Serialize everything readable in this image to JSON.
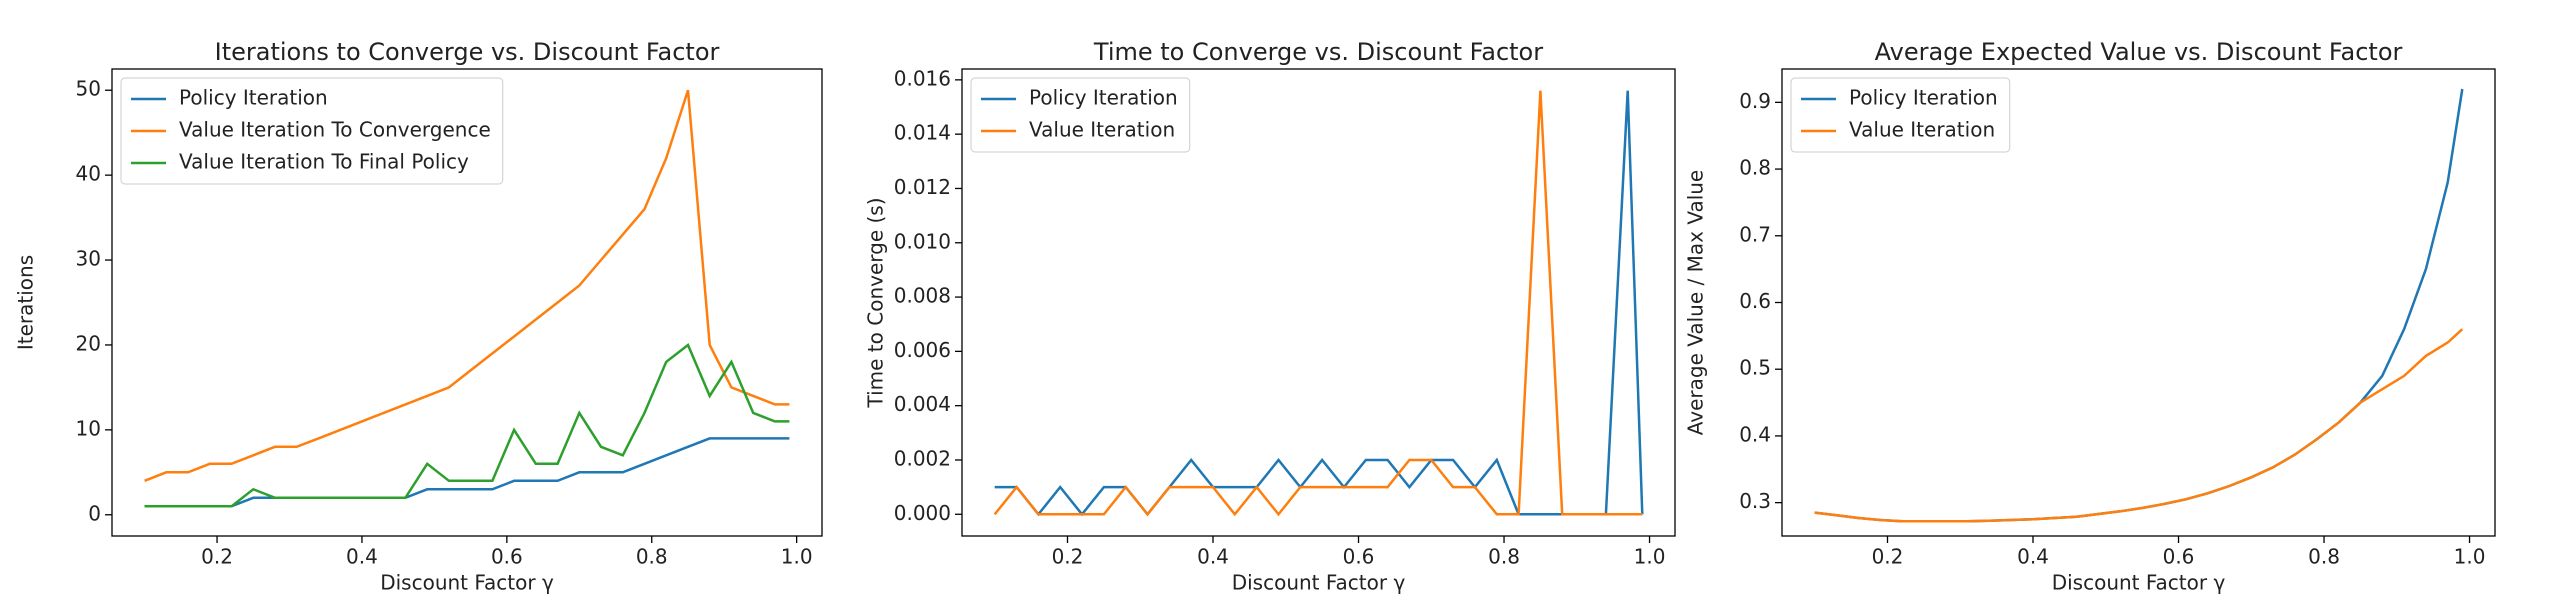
{
  "chart_data": [
    {
      "type": "line",
      "title": "Iterations to Converge vs. Discount Factor",
      "x_label": "Discount Factor γ",
      "y_label": "Iterations",
      "x": [
        0.1,
        0.13,
        0.16,
        0.19,
        0.22,
        0.25,
        0.28,
        0.31,
        0.34,
        0.37,
        0.4,
        0.43,
        0.46,
        0.49,
        0.52,
        0.55,
        0.58,
        0.61,
        0.64,
        0.67,
        0.7,
        0.73,
        0.76,
        0.79,
        0.82,
        0.85,
        0.88,
        0.91,
        0.94,
        0.97,
        0.99
      ],
      "series": [
        {
          "name": "Policy Iteration",
          "color": "#1f77b4",
          "values": [
            1,
            1,
            1,
            1,
            1,
            2,
            2,
            2,
            2,
            2,
            2,
            2,
            2,
            3,
            3,
            3,
            3,
            4,
            4,
            4,
            5,
            5,
            5,
            6,
            7,
            8,
            9,
            9,
            9,
            9,
            9
          ]
        },
        {
          "name": "Value Iteration To Convergence",
          "color": "#ff7f0e",
          "values": [
            4,
            5,
            5,
            6,
            6,
            7,
            8,
            8,
            9,
            10,
            11,
            12,
            13,
            14,
            15,
            17,
            19,
            21,
            23,
            25,
            27,
            30,
            33,
            36,
            42,
            50,
            20,
            15,
            14,
            13,
            13
          ]
        },
        {
          "name": "Value Iteration To Final Policy",
          "color": "#2ca02c",
          "values": [
            1,
            1,
            1,
            1,
            1,
            3,
            2,
            2,
            2,
            2,
            2,
            2,
            2,
            6,
            4,
            4,
            4,
            10,
            6,
            6,
            12,
            8,
            7,
            12,
            18,
            20,
            14,
            18,
            12,
            11,
            11
          ]
        }
      ],
      "xlim": [
        0.055,
        1.035
      ],
      "xticks": [
        0.2,
        0.4,
        0.6,
        0.8,
        {
          "value": 1,
          "label": "1.0"
        }
      ],
      "ylim": [
        -2.5,
        52.5
      ],
      "yticks": [
        0,
        10,
        20,
        30,
        40,
        50
      ],
      "legend": "upper-left"
    },
    {
      "type": "line",
      "title": "Time to Converge vs. Discount Factor",
      "x_label": "Discount Factor γ",
      "y_label": "Time to Converge (s)",
      "x": [
        0.1,
        0.13,
        0.16,
        0.19,
        0.22,
        0.25,
        0.28,
        0.31,
        0.34,
        0.37,
        0.4,
        0.43,
        0.46,
        0.49,
        0.52,
        0.55,
        0.58,
        0.61,
        0.64,
        0.67,
        0.7,
        0.73,
        0.76,
        0.79,
        0.82,
        0.85,
        0.88,
        0.91,
        0.94,
        0.97,
        0.99
      ],
      "series": [
        {
          "name": "Policy Iteration",
          "color": "#1f77b4",
          "values": [
            0.001,
            0.001,
            0,
            0.001,
            0,
            0.001,
            0.001,
            0,
            0.001,
            0.002,
            0.001,
            0.001,
            0.001,
            0.002,
            0.001,
            0.002,
            0.001,
            0.002,
            0.002,
            0.001,
            0.002,
            0.002,
            0.001,
            0.002,
            0,
            0,
            0,
            0,
            0,
            0.0156,
            0
          ]
        },
        {
          "name": "Value Iteration",
          "color": "#ff7f0e",
          "values": [
            0,
            0.001,
            0,
            0,
            0,
            0,
            0.001,
            0,
            0.001,
            0.001,
            0.001,
            0,
            0.001,
            0,
            0.001,
            0.001,
            0.001,
            0.001,
            0.001,
            0.002,
            0.002,
            0.001,
            0.001,
            0,
            0,
            0.0156,
            0,
            0,
            0,
            0,
            0
          ]
        }
      ],
      "xlim": [
        0.055,
        1.035
      ],
      "xticks": [
        0.2,
        0.4,
        0.6,
        0.8,
        {
          "value": 1,
          "label": "1.0"
        }
      ],
      "ylim": [
        -0.0008,
        0.0164
      ],
      "yticks": [
        {
          "value": 0,
          "label": "0.000"
        },
        {
          "value": 0.002,
          "label": "0.002"
        },
        {
          "value": 0.004,
          "label": "0.004"
        },
        {
          "value": 0.006,
          "label": "0.006"
        },
        {
          "value": 0.008,
          "label": "0.008"
        },
        {
          "value": 0.01,
          "label": "0.010"
        },
        {
          "value": 0.012,
          "label": "0.012"
        },
        {
          "value": 0.014,
          "label": "0.014"
        },
        {
          "value": 0.016,
          "label": "0.016"
        }
      ],
      "legend": "upper-left"
    },
    {
      "type": "line",
      "title": "Average Expected Value vs. Discount Factor",
      "x_label": "Discount Factor γ",
      "y_label": "Average Value / Max Value",
      "x": [
        0.1,
        0.13,
        0.16,
        0.19,
        0.22,
        0.25,
        0.28,
        0.31,
        0.34,
        0.37,
        0.4,
        0.43,
        0.46,
        0.49,
        0.52,
        0.55,
        0.58,
        0.61,
        0.64,
        0.67,
        0.7,
        0.73,
        0.76,
        0.79,
        0.82,
        0.85,
        0.88,
        0.91,
        0.94,
        0.97,
        0.99
      ],
      "series": [
        {
          "name": "Policy Iteration",
          "color": "#1f77b4",
          "values": [
            0.285,
            0.281,
            0.277,
            0.274,
            0.272,
            0.272,
            0.272,
            0.272,
            0.273,
            0.274,
            0.275,
            0.277,
            0.279,
            0.283,
            0.287,
            0.292,
            0.298,
            0.305,
            0.314,
            0.325,
            0.338,
            0.353,
            0.372,
            0.395,
            0.42,
            0.45,
            0.49,
            0.56,
            0.65,
            0.78,
            0.92
          ]
        },
        {
          "name": "Value Iteration",
          "color": "#ff7f0e",
          "values": [
            0.285,
            0.281,
            0.277,
            0.274,
            0.272,
            0.272,
            0.272,
            0.272,
            0.273,
            0.274,
            0.275,
            0.277,
            0.279,
            0.283,
            0.287,
            0.292,
            0.298,
            0.305,
            0.314,
            0.325,
            0.338,
            0.353,
            0.372,
            0.395,
            0.42,
            0.45,
            0.47,
            0.49,
            0.52,
            0.54,
            0.56
          ]
        }
      ],
      "xlim": [
        0.055,
        1.035
      ],
      "xticks": [
        0.2,
        0.4,
        0.6,
        0.8,
        {
          "value": 1,
          "label": "1.0"
        }
      ],
      "ylim": [
        0.25,
        0.95
      ],
      "yticks": [
        0.3,
        0.4,
        0.5,
        0.6,
        0.7,
        0.8,
        0.9
      ],
      "legend": "upper-left"
    }
  ]
}
